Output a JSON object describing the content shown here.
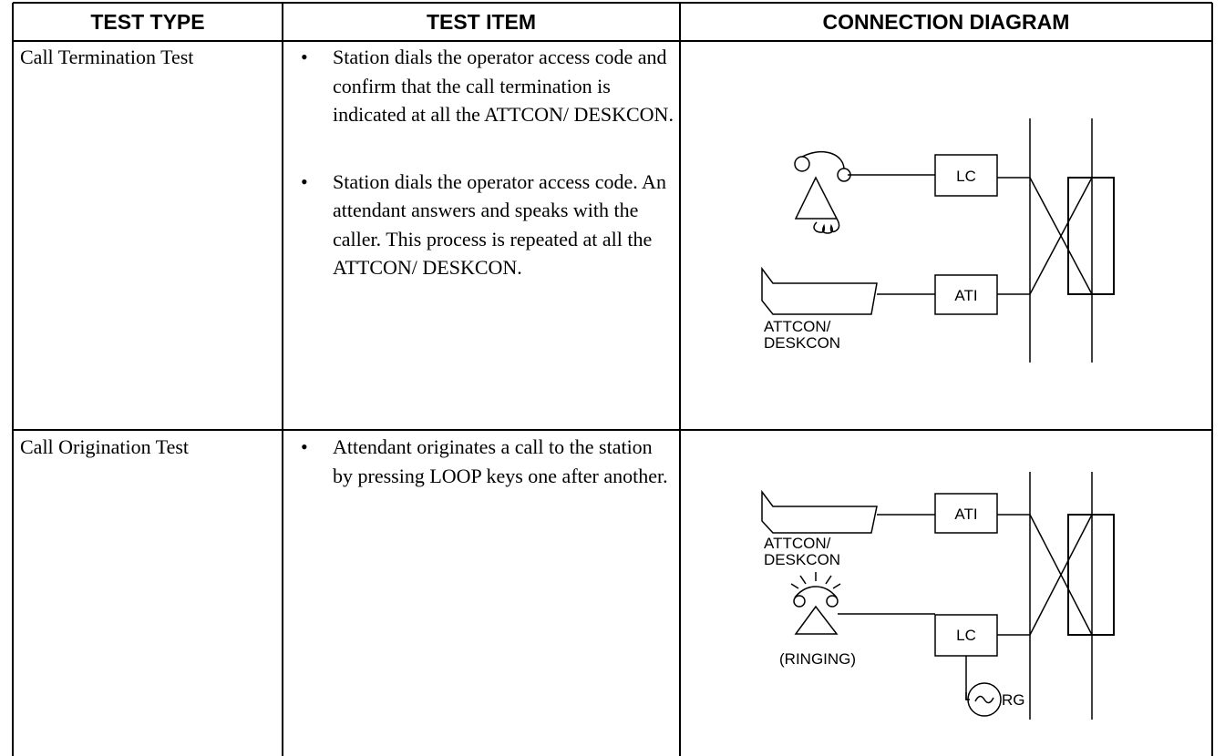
{
  "table": {
    "headers": [
      "TEST TYPE",
      "TEST ITEM",
      "CONNECTION DIAGRAM"
    ],
    "rows": [
      {
        "test_type": "Call Termination Test",
        "items": [
          "Station dials the operator access code and confirm that the call termination is indicated at all the ATTCON/ DESKCON.",
          "Station dials the operator access code. An attendant answers and speaks with the caller. This process is repeated at all the ATTCON/ DESKCON."
        ],
        "diagram": {
          "lc": "LC",
          "ati": "ATI",
          "console": [
            "ATTCON/",
            "DESKCON"
          ]
        }
      },
      {
        "test_type": "Call Origination Test",
        "items": [
          "Attendant originates a call to the station by pressing LOOP keys one after another."
        ],
        "diagram": {
          "ati": "ATI",
          "console": [
            "ATTCON/",
            "DESKCON"
          ],
          "lc": "LC",
          "ringing": "(RINGING)",
          "rg": "RG"
        }
      }
    ]
  }
}
